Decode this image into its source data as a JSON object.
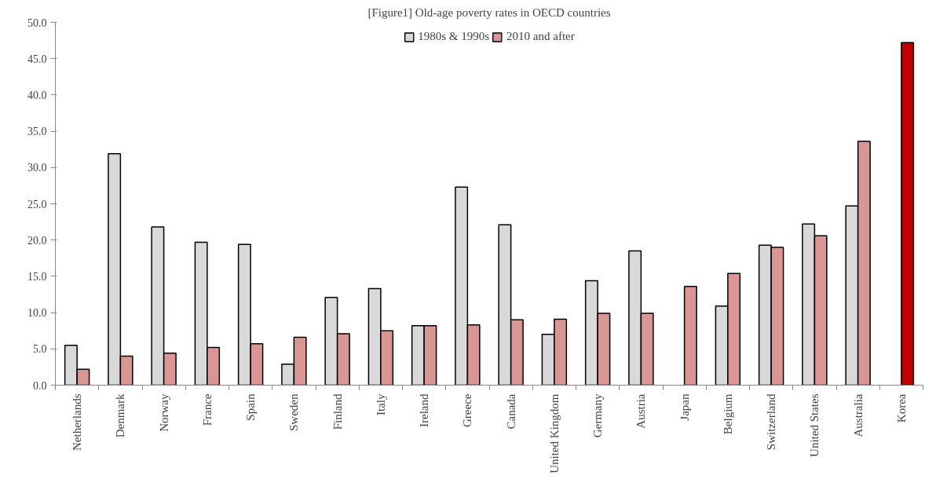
{
  "chart_data": {
    "type": "bar",
    "title": "[Figure1] Old-age poverty rates in OECD countries",
    "categories": [
      "Netherlands",
      "Denmark",
      "Norway",
      "France",
      "Spain",
      "Sweden",
      "Finland",
      "Italy",
      "Ireland",
      "Greece",
      "Canada",
      "United Kingdom",
      "Germany",
      "Austria",
      "Japan",
      "Belgium",
      "Switzerland",
      "United States",
      "Australia",
      "Korea"
    ],
    "series": [
      {
        "name": "1980s & 1990s",
        "color": "#d9d9d9",
        "values": [
          5.5,
          31.9,
          21.8,
          19.7,
          19.4,
          2.9,
          12.1,
          13.3,
          8.2,
          27.3,
          22.1,
          7.0,
          14.4,
          18.5,
          null,
          10.9,
          19.3,
          22.2,
          24.7,
          null
        ]
      },
      {
        "name": "2010 and after",
        "color": "#d99694",
        "colors": [
          null,
          null,
          null,
          null,
          null,
          null,
          null,
          null,
          null,
          null,
          null,
          null,
          null,
          null,
          null,
          null,
          null,
          null,
          null,
          "#c00000"
        ],
        "values": [
          2.2,
          4.0,
          4.4,
          5.2,
          5.7,
          6.6,
          7.1,
          7.5,
          8.2,
          8.3,
          9.0,
          9.1,
          9.9,
          9.9,
          13.6,
          15.4,
          19.0,
          20.6,
          33.6,
          47.2
        ]
      }
    ],
    "ylim": [
      0,
      50
    ],
    "yticks": [
      {
        "value": 0,
        "label": "0.0"
      },
      {
        "value": 5,
        "label": "5.0"
      },
      {
        "value": 10,
        "label": "10.0"
      },
      {
        "value": 15,
        "label": "15.0"
      },
      {
        "value": 20,
        "label": "20.0"
      },
      {
        "value": 25,
        "label": "25.0"
      },
      {
        "value": 30,
        "label": "30.0"
      },
      {
        "value": 35,
        "label": "35.0"
      },
      {
        "value": 40,
        "label": "40.0"
      },
      {
        "value": 45,
        "label": "45.0"
      },
      {
        "value": 50,
        "label": "50.0"
      }
    ],
    "grid": false,
    "legend": "top"
  }
}
